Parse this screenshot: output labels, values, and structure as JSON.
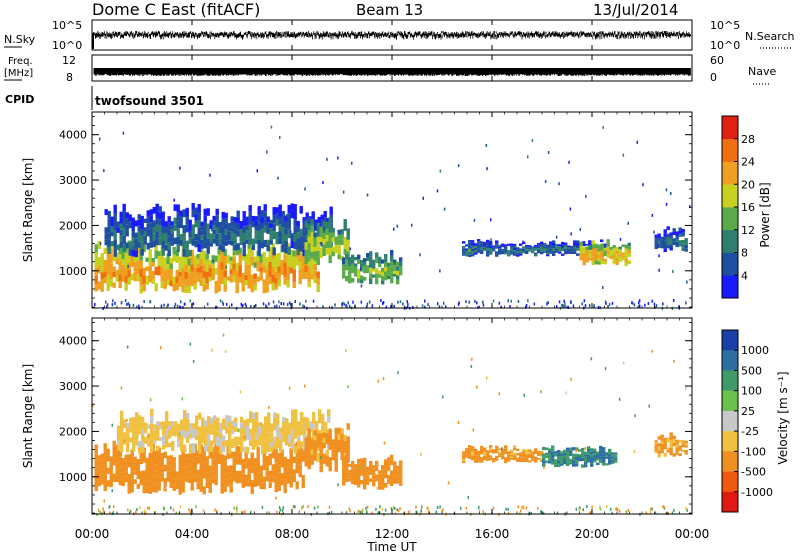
{
  "header": {
    "station": "Dome C East (fitACF)",
    "beam": "Beam 13",
    "date": "13/Jul/2014"
  },
  "strips": {
    "nsky_label": "N.Sky",
    "nsky_ticks": [
      "10^5",
      "10^0"
    ],
    "nsearch_label": "N.Search",
    "nsearch_ticks": [
      "10^5",
      "10^0"
    ],
    "freq_label": "Freq.",
    "freq_unit": "[MHz]",
    "freq_ticks": [
      "12",
      "8"
    ],
    "nave_label": "Nave",
    "nave_ticks": [
      "60",
      "0"
    ],
    "cpid_label": "CPID",
    "cpid_value": "twofsound 3501"
  },
  "axes": {
    "ylabel": "Slant Range [km]",
    "y_ticks": [
      "1000",
      "2000",
      "3000",
      "4000"
    ],
    "xlabel": "Time UT",
    "x_ticks": [
      "00:00",
      "04:00",
      "08:00",
      "12:00",
      "16:00",
      "20:00",
      "00:00"
    ]
  },
  "colorbars": {
    "power_label": "Power [dB]",
    "power_ticks": [
      "4",
      "8",
      "12",
      "16",
      "20",
      "24",
      "28"
    ],
    "power_colors": [
      "#1a1aff",
      "#1f4fa0",
      "#2f7f70",
      "#5aaa4a",
      "#c8d020",
      "#f0a020",
      "#f07010",
      "#e02010"
    ],
    "velocity_label": "Velocity [m s⁻¹]",
    "velocity_ticks": [
      "1000",
      "500",
      "100",
      "25",
      "-25",
      "-100",
      "-500",
      "-1000"
    ],
    "velocity_colors": [
      "#1a3fa8",
      "#2c6fa0",
      "#3f9a6a",
      "#6ac24a",
      "#c8c8c8",
      "#f0c040",
      "#f09020",
      "#f05a10",
      "#e01a10"
    ]
  },
  "chart_data": [
    {
      "type": "heatmap",
      "title": "",
      "ylabel": "Slant Range [km]",
      "xlabel": "",
      "x_range_hours": [
        0,
        24
      ],
      "ylim": [
        180,
        4500
      ],
      "colorbar": "Power [dB]",
      "regions": [
        {
          "t0": 0.1,
          "t1": 9.0,
          "r0": 500,
          "r1": 1700,
          "value": 24
        },
        {
          "t0": 0.5,
          "t1": 9.5,
          "r0": 1300,
          "r1": 2500,
          "value": 10
        },
        {
          "t0": 8.5,
          "t1": 10.2,
          "r0": 1100,
          "r1": 2200,
          "value": 18
        },
        {
          "t0": 10.0,
          "t1": 12.3,
          "r0": 700,
          "r1": 1500,
          "value": 16
        },
        {
          "t0": 14.8,
          "t1": 20.5,
          "r0": 1300,
          "r1": 1700,
          "value": 10
        },
        {
          "t0": 19.5,
          "t1": 21.5,
          "r0": 1100,
          "r1": 1700,
          "value": 22
        },
        {
          "t0": 22.5,
          "t1": 23.8,
          "r0": 1400,
          "r1": 2000,
          "value": 10
        }
      ]
    },
    {
      "type": "heatmap",
      "title": "",
      "ylabel": "Slant Range [km]",
      "xlabel": "Time UT",
      "x_range_hours": [
        0,
        24
      ],
      "ylim": [
        180,
        4500
      ],
      "colorbar": "Velocity [m s⁻¹]",
      "regions": [
        {
          "t0": 0.1,
          "t1": 8.5,
          "r0": 600,
          "r1": 1800,
          "value": -150
        },
        {
          "t0": 1.0,
          "t1": 9.5,
          "r0": 1500,
          "r1": 2500,
          "value": -30
        },
        {
          "t0": 8.5,
          "t1": 10.2,
          "r0": 1100,
          "r1": 2200,
          "value": -100
        },
        {
          "t0": 10.0,
          "t1": 12.3,
          "r0": 700,
          "r1": 1500,
          "value": -200
        },
        {
          "t0": 14.8,
          "t1": 18.0,
          "r0": 1300,
          "r1": 1700,
          "value": -100
        },
        {
          "t0": 18.0,
          "t1": 21.0,
          "r0": 1200,
          "r1": 1700,
          "value": 300
        },
        {
          "t0": 22.5,
          "t1": 23.8,
          "r0": 1400,
          "r1": 2000,
          "value": -80
        }
      ]
    }
  ]
}
